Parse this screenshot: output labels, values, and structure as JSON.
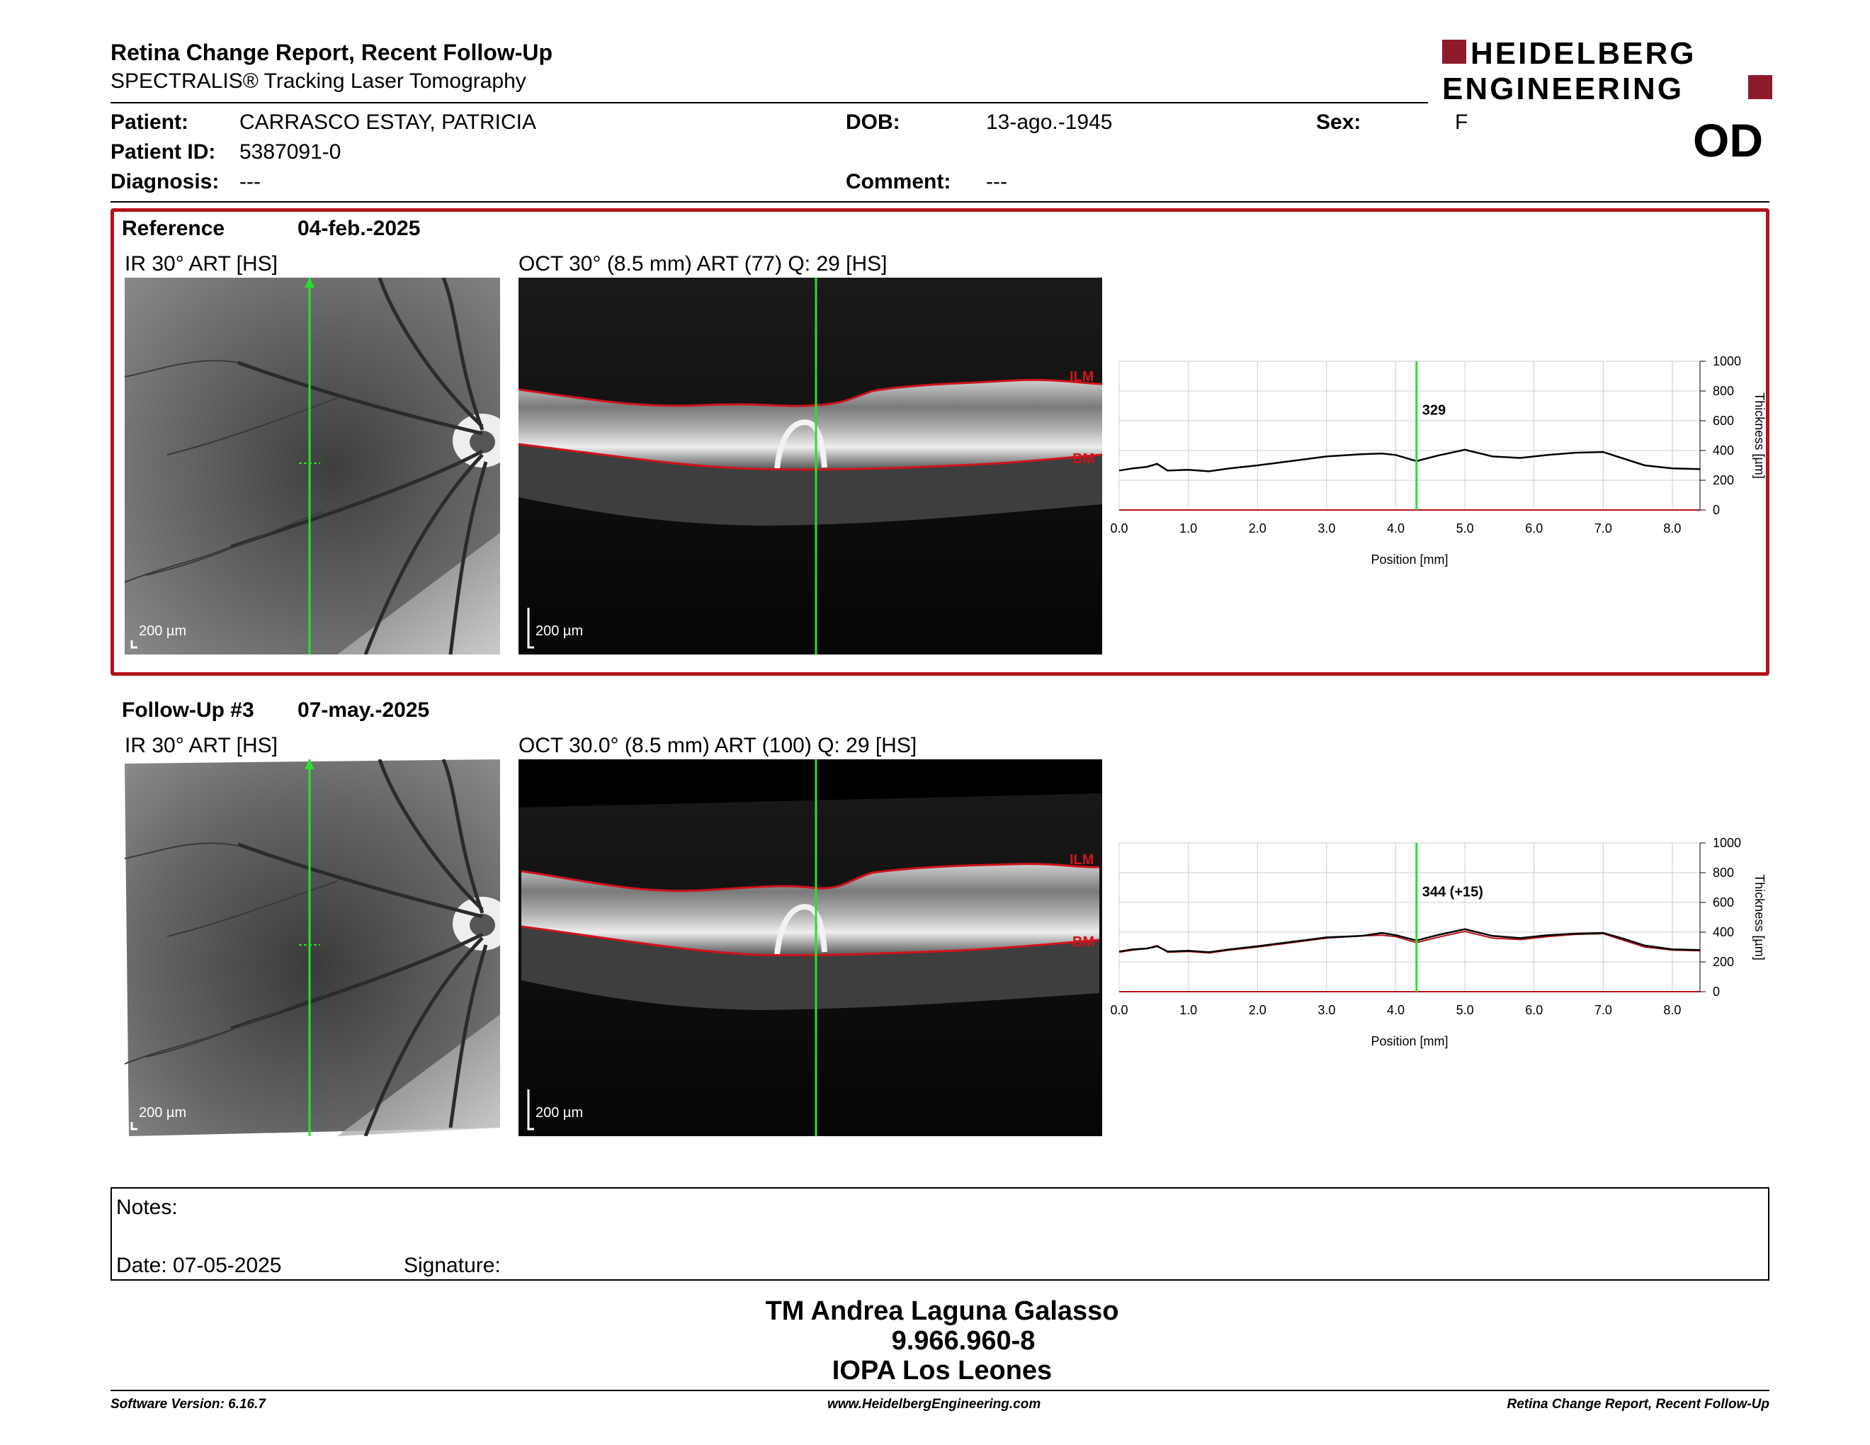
{
  "header": {
    "title": "Retina Change Report, Recent Follow-Up",
    "subtitle": "SPECTRALIS® Tracking Laser Tomography",
    "logo_line1": "HEIDELBERG",
    "logo_line2": "ENGINEERING",
    "eye": "OD"
  },
  "patient": {
    "patient_label": "Patient:",
    "patient_value": "CARRASCO ESTAY, PATRICIA",
    "id_label": "Patient ID:",
    "id_value": "5387091-0",
    "diagnosis_label": "Diagnosis:",
    "diagnosis_value": "---",
    "dob_label": "DOB:",
    "dob_value": "13-ago.-1945",
    "comment_label": "Comment:",
    "comment_value": "---",
    "sex_label": "Sex:",
    "sex_value": "F"
  },
  "reference": {
    "label": "Reference",
    "date": "04-feb.-2025",
    "ir_label": "IR 30° ART [HS]",
    "oct_label": "OCT 30° (8.5 mm) ART (77) Q: 29 [HS]",
    "scale": "200 µm",
    "ilm": "ILM",
    "bm": "BM"
  },
  "followup": {
    "label": "Follow-Up #3",
    "date": "07-may.-2025",
    "ir_label": "IR 30° ART [HS]",
    "oct_label": "OCT 30.0° (8.5 mm) ART (100) Q: 29 [HS]",
    "scale": "200 µm",
    "ilm": "ILM",
    "bm": "BM"
  },
  "notes": {
    "notes_label": "Notes:",
    "date_label": "Date: 07-05-2025",
    "signature_label": "Signature:"
  },
  "signature": {
    "name": "TM Andrea Laguna Galasso",
    "id": "9.966.960-8",
    "org": "IOPA Los Leones"
  },
  "footer": {
    "left": "Software Version: 6.16.7",
    "center": "www.HeidelbergEngineering.com",
    "right": "Retina Change Report, Recent Follow-Up"
  },
  "colors": {
    "accent_red": "#b5121b",
    "scan_line_green": "#29e02e",
    "segment_red": "#d0131b"
  },
  "chart_data": [
    {
      "type": "line",
      "xlabel": "Position [mm]",
      "ylabel": "Thickness [µm]",
      "xlim": [
        0,
        8.4
      ],
      "ylim": [
        0,
        1000
      ],
      "x_ticks": [
        "0.0",
        "1.0",
        "2.0",
        "3.0",
        "4.0",
        "5.0",
        "6.0",
        "7.0",
        "8.0"
      ],
      "y_ticks": [
        "0",
        "200",
        "400",
        "600",
        "800",
        "1000"
      ],
      "marker_x": 4.3,
      "marker_label": "329",
      "grid": true,
      "series": [
        {
          "x": [
            0.0,
            0.2,
            0.4,
            0.55,
            0.7,
            1.0,
            1.3,
            1.6,
            2.0,
            2.5,
            3.0,
            3.5,
            3.8,
            4.0,
            4.3,
            4.6,
            5.0,
            5.4,
            5.8,
            6.2,
            6.6,
            7.0,
            7.3,
            7.6,
            8.0,
            8.4
          ],
          "y": [
            265,
            280,
            290,
            310,
            265,
            270,
            260,
            280,
            300,
            330,
            360,
            375,
            380,
            370,
            329,
            365,
            405,
            360,
            350,
            370,
            385,
            390,
            345,
            300,
            280,
            275
          ]
        }
      ]
    },
    {
      "type": "line",
      "xlabel": "Position [mm]",
      "ylabel": "Thickness [µm]",
      "xlim": [
        0,
        8.4
      ],
      "ylim": [
        0,
        1000
      ],
      "x_ticks": [
        "0.0",
        "1.0",
        "2.0",
        "3.0",
        "4.0",
        "5.0",
        "6.0",
        "7.0",
        "8.0"
      ],
      "y_ticks": [
        "0",
        "200",
        "400",
        "600",
        "800",
        "1000"
      ],
      "marker_x": 4.3,
      "marker_label": "344 (+15)",
      "grid": true,
      "series": [
        {
          "x": [
            0.0,
            0.2,
            0.4,
            0.55,
            0.7,
            1.0,
            1.3,
            1.6,
            2.0,
            2.5,
            3.0,
            3.5,
            3.8,
            4.0,
            4.3,
            4.6,
            5.0,
            5.4,
            5.8,
            6.2,
            6.6,
            7.0,
            7.3,
            7.6,
            8.0,
            8.4
          ],
          "y": [
            270,
            285,
            290,
            305,
            270,
            275,
            265,
            285,
            305,
            335,
            365,
            375,
            395,
            380,
            344,
            380,
            420,
            375,
            360,
            380,
            390,
            395,
            355,
            310,
            285,
            280
          ]
        },
        {
          "x": [
            0.0,
            0.2,
            0.4,
            0.55,
            0.7,
            1.0,
            1.3,
            1.6,
            2.0,
            2.5,
            3.0,
            3.5,
            3.8,
            4.0,
            4.3,
            4.6,
            5.0,
            5.4,
            5.8,
            6.2,
            6.6,
            7.0,
            7.3,
            7.6,
            8.0,
            8.4
          ],
          "y": [
            265,
            280,
            290,
            310,
            265,
            270,
            260,
            280,
            300,
            330,
            360,
            375,
            380,
            370,
            329,
            365,
            405,
            360,
            350,
            370,
            385,
            390,
            345,
            300,
            280,
            275
          ]
        }
      ]
    }
  ]
}
